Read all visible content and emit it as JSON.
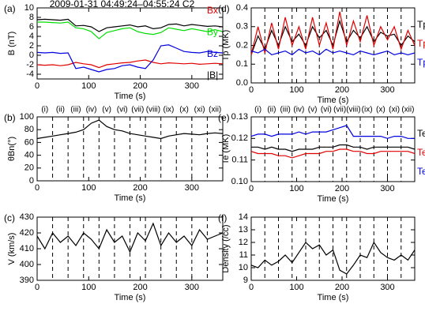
{
  "chart_data": [
    {
      "type": "line",
      "label": "(a)",
      "title": "2009-01-31 04:49:24–04:55:24 C2",
      "xlabel": "Time (s)",
      "ylabel": "B (nT)",
      "xlim": [
        0,
        360
      ],
      "xticks": [
        0,
        100,
        200,
        300
      ],
      "ylim": [
        -5,
        10
      ],
      "yticks": [
        10,
        8,
        6,
        4,
        2,
        0,
        -2,
        -4
      ],
      "x": [
        0,
        15,
        30,
        45,
        60,
        75,
        90,
        105,
        120,
        135,
        150,
        165,
        180,
        195,
        210,
        225,
        240,
        255,
        270,
        285,
        300,
        315,
        330,
        345,
        360
      ],
      "series": [
        {
          "name": "Bx",
          "color": "#e00000",
          "values": [
            -2.0,
            -2.1,
            -2.0,
            -2.2,
            -2.0,
            -1.5,
            -1.8,
            -2.0,
            -2.6,
            -2.0,
            -1.8,
            -1.6,
            -1.5,
            -1.2,
            -1.0,
            -1.5,
            -1.8,
            -1.6,
            -1.7,
            -1.8,
            -1.7,
            -1.9,
            -1.8,
            -1.7,
            -1.8
          ]
        },
        {
          "name": "By",
          "color": "#00dd00",
          "values": [
            7.0,
            7.0,
            6.9,
            6.8,
            7.0,
            5.8,
            5.6,
            5.0,
            3.5,
            4.8,
            5.2,
            5.6,
            5.8,
            5.0,
            4.6,
            4.4,
            4.8,
            5.8,
            5.5,
            5.2,
            5.6,
            5.3,
            5.0,
            5.4,
            5.0
          ]
        },
        {
          "name": "Bz",
          "color": "#0000e0",
          "values": [
            0.6,
            0.5,
            0.6,
            0.4,
            0.5,
            -2.8,
            -2.5,
            -3.0,
            -3.5,
            -3.0,
            -2.8,
            -2.2,
            -2.0,
            -2.5,
            -2.8,
            -1.0,
            2.0,
            2.2,
            1.5,
            0.8,
            0.6,
            0.5,
            0.8,
            0.6,
            0.5
          ]
        },
        {
          "name": "|B|",
          "color": "#000000",
          "values": [
            7.5,
            7.6,
            7.5,
            7.4,
            7.6,
            6.2,
            6.3,
            6.0,
            5.0,
            5.8,
            6.0,
            6.2,
            6.4,
            6.0,
            6.2,
            5.6,
            5.8,
            6.5,
            6.6,
            6.2,
            6.5,
            6.3,
            6.1,
            6.2,
            6.0
          ]
        }
      ]
    },
    {
      "type": "line",
      "label": "(b)",
      "xlabel": "Time (s)",
      "ylabel": "θBn(°)",
      "xlim": [
        0,
        360
      ],
      "xticks": [
        0,
        100,
        200,
        300
      ],
      "ylim": [
        0,
        100
      ],
      "yticks": [
        0,
        20,
        40,
        60,
        80,
        100
      ],
      "vlines": [
        30,
        60,
        90,
        120,
        150,
        180,
        210,
        240,
        270,
        300,
        330
      ],
      "intervals": [
        "(i)",
        "(ii)",
        "(iii)",
        "(iv)",
        "(v)",
        "(vi)",
        "(vii)",
        "(viii)",
        "(ix)",
        "(x)",
        "(xi)",
        "(xii)"
      ],
      "x": [
        0,
        15,
        30,
        45,
        60,
        75,
        90,
        105,
        120,
        135,
        150,
        165,
        180,
        195,
        210,
        225,
        240,
        255,
        270,
        285,
        300,
        315,
        330,
        345,
        360
      ],
      "series": [
        {
          "color": "#000000",
          "values": [
            66,
            68,
            70,
            72,
            74,
            76,
            80,
            90,
            95,
            85,
            80,
            78,
            74,
            72,
            70,
            68,
            66,
            70,
            72,
            74,
            73,
            72,
            74,
            75,
            74
          ]
        }
      ]
    },
    {
      "type": "line",
      "label": "(c)",
      "xlabel": "Time (s)",
      "ylabel": "V (km/s)",
      "xlim": [
        0,
        360
      ],
      "xticks": [
        0,
        100,
        200,
        300
      ],
      "ylim": [
        390,
        430
      ],
      "yticks": [
        390,
        400,
        410,
        420,
        430
      ],
      "vlines": [
        30,
        60,
        90,
        120,
        150,
        180,
        210,
        240,
        270,
        300,
        330
      ],
      "x": [
        0,
        15,
        30,
        45,
        60,
        75,
        90,
        105,
        120,
        135,
        150,
        165,
        180,
        195,
        210,
        225,
        240,
        255,
        270,
        285,
        300,
        315,
        330,
        345,
        360
      ],
      "series": [
        {
          "color": "#000000",
          "values": [
            418,
            410,
            420,
            414,
            418,
            412,
            420,
            416,
            410,
            422,
            414,
            418,
            408,
            420,
            415,
            426,
            412,
            420,
            414,
            418,
            412,
            422,
            416,
            418,
            420
          ]
        }
      ]
    },
    {
      "type": "line",
      "label": "(d)",
      "xlabel": "Time (s)",
      "ylabel": "Tp (MK)",
      "xlim": [
        0,
        360
      ],
      "xticks": [
        0,
        100,
        200,
        300
      ],
      "ylim": [
        0,
        0.4
      ],
      "yticks": [
        {
          "value": 0,
          "label": "0.0"
        },
        0.1,
        0.2,
        0.3,
        {
          "value": 0.4,
          "label": "0.4"
        }
      ],
      "vlines": [
        30,
        60,
        90,
        120,
        150,
        180,
        210,
        240,
        270,
        300,
        330
      ],
      "x": [
        0,
        15,
        30,
        45,
        60,
        75,
        90,
        105,
        120,
        135,
        150,
        165,
        180,
        195,
        210,
        225,
        240,
        255,
        270,
        285,
        300,
        315,
        330,
        345,
        360
      ],
      "series": [
        {
          "name": "Tp",
          "color": "#000000",
          "values": [
            0.15,
            0.25,
            0.18,
            0.28,
            0.2,
            0.3,
            0.22,
            0.26,
            0.2,
            0.3,
            0.24,
            0.28,
            0.2,
            0.33,
            0.22,
            0.28,
            0.24,
            0.3,
            0.22,
            0.27,
            0.25,
            0.26,
            0.2,
            0.25,
            0.22
          ]
        },
        {
          "name": "Tp",
          "color": "#e00000",
          "values": [
            0.15,
            0.3,
            0.16,
            0.32,
            0.18,
            0.35,
            0.2,
            0.3,
            0.18,
            0.35,
            0.2,
            0.32,
            0.18,
            0.38,
            0.2,
            0.33,
            0.22,
            0.36,
            0.2,
            0.3,
            0.23,
            0.3,
            0.18,
            0.28,
            0.2
          ]
        },
        {
          "name": "Tp",
          "color": "#0000e0",
          "values": [
            0.17,
            0.16,
            0.18,
            0.15,
            0.16,
            0.17,
            0.15,
            0.18,
            0.16,
            0.17,
            0.15,
            0.18,
            0.16,
            0.17,
            0.16,
            0.15,
            0.17,
            0.16,
            0.15,
            0.16,
            0.17,
            0.15,
            0.16,
            0.15,
            0.16
          ]
        }
      ]
    },
    {
      "type": "line",
      "label": "(e)",
      "xlabel": "Time (s)",
      "ylabel": "Te (MK)",
      "xlim": [
        0,
        360
      ],
      "xticks": [
        0,
        100,
        200,
        300
      ],
      "ylim": [
        0.1,
        0.13
      ],
      "yticks": [
        {
          "value": 0.1,
          "label": "0.10"
        },
        0.11,
        0.12,
        0.13
      ],
      "vlines": [
        30,
        60,
        90,
        120,
        150,
        180,
        210,
        240,
        270,
        300,
        330
      ],
      "intervals": [
        "(i)",
        "(ii)",
        "(iii)",
        "(iv)",
        "(v)",
        "(vi)",
        "(vii)",
        "(viii)",
        "(ix)",
        "(x)",
        "(xi)",
        "(xii)"
      ],
      "x": [
        0,
        15,
        30,
        45,
        60,
        75,
        90,
        105,
        120,
        135,
        150,
        165,
        180,
        195,
        210,
        225,
        240,
        255,
        270,
        285,
        300,
        315,
        330,
        345,
        360
      ],
      "series": [
        {
          "name": "Te",
          "color": "#000000",
          "values": [
            0.116,
            0.116,
            0.115,
            0.116,
            0.115,
            0.115,
            0.114,
            0.115,
            0.115,
            0.115,
            0.116,
            0.116,
            0.116,
            0.117,
            0.117,
            0.116,
            0.116,
            0.115,
            0.116,
            0.116,
            0.116,
            0.116,
            0.116,
            0.116,
            0.115
          ]
        },
        {
          "name": "Te",
          "color": "#e00000",
          "values": [
            0.114,
            0.113,
            0.113,
            0.113,
            0.112,
            0.112,
            0.111,
            0.112,
            0.113,
            0.113,
            0.113,
            0.114,
            0.114,
            0.115,
            0.115,
            0.114,
            0.114,
            0.113,
            0.113,
            0.114,
            0.114,
            0.114,
            0.114,
            0.114,
            0.113
          ]
        },
        {
          "name": "Te",
          "color": "#0000e0",
          "values": [
            0.121,
            0.122,
            0.122,
            0.121,
            0.122,
            0.122,
            0.122,
            0.123,
            0.122,
            0.123,
            0.123,
            0.123,
            0.124,
            0.125,
            0.126,
            0.121,
            0.121,
            0.121,
            0.121,
            0.121,
            0.12,
            0.121,
            0.121,
            0.12,
            0.12
          ]
        }
      ]
    },
    {
      "type": "line",
      "label": "(f)",
      "xlabel": "Time (s)",
      "ylabel": "Density (/cc)",
      "xlim": [
        0,
        360
      ],
      "xticks": [
        0,
        100,
        200,
        300
      ],
      "ylim": [
        9,
        14
      ],
      "yticks": [
        9,
        10,
        11,
        12,
        13,
        14
      ],
      "vlines": [
        30,
        60,
        90,
        120,
        150,
        180,
        210,
        240,
        270,
        300,
        330
      ],
      "x": [
        0,
        15,
        30,
        45,
        60,
        75,
        90,
        105,
        120,
        135,
        150,
        165,
        180,
        195,
        210,
        225,
        240,
        255,
        270,
        285,
        300,
        315,
        330,
        345,
        360
      ],
      "series": [
        {
          "color": "#000000",
          "values": [
            10.2,
            10.0,
            10.6,
            10.2,
            10.5,
            11.0,
            10.4,
            11.2,
            12.0,
            11.5,
            11.8,
            11.0,
            11.4,
            9.8,
            9.5,
            10.2,
            11.0,
            10.8,
            12.0,
            11.2,
            10.8,
            10.6,
            11.0,
            10.6,
            11.4
          ]
        }
      ]
    }
  ]
}
